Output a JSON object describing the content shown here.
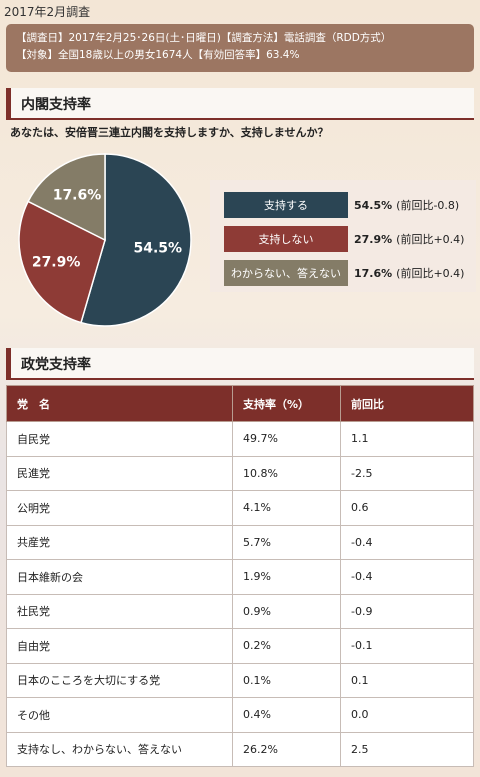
{
  "header": {
    "survey_title": "2017年2月調査",
    "info_line1": "【調査日】2017年2月25･26日(土･日曜日)【調査方法】電話調査（RDD方式）",
    "info_line2": "【対象】全国18歳以上の男女1674人【有効回答率】63.4%"
  },
  "cabinet": {
    "heading": "内閣支持率",
    "question": "あなたは、安倍晋三連立内閣を支持しますか、支持しませんか？"
  },
  "colors": {
    "support": "#2b4554",
    "oppose": "#8e3b36",
    "unknown": "#847c67",
    "accent": "#7d2f2a",
    "info_box": "#9c7662"
  },
  "chart_data": {
    "type": "pie",
    "slices": [
      {
        "label": "支持する",
        "value": 54.5,
        "value_label": "54.5%",
        "diff": "(前回比-0.8)",
        "color": "#2b4554"
      },
      {
        "label": "支持しない",
        "value": 27.9,
        "value_label": "27.9%",
        "diff": "(前回比+0.4)",
        "color": "#8e3b36"
      },
      {
        "label": "わからない、答えない",
        "value": 17.6,
        "value_label": "17.6%",
        "diff": "(前回比+0.4)",
        "color": "#847c67"
      }
    ]
  },
  "party": {
    "heading": "政党支持率",
    "columns": [
      "党　名",
      "支持率（%）",
      "前回比"
    ],
    "rows": [
      {
        "name": "自民党",
        "rate": "49.7%",
        "diff": "1.1"
      },
      {
        "name": "民進党",
        "rate": "10.8%",
        "diff": "-2.5"
      },
      {
        "name": "公明党",
        "rate": "4.1%",
        "diff": "0.6"
      },
      {
        "name": "共産党",
        "rate": "5.7%",
        "diff": "-0.4"
      },
      {
        "name": "日本維新の会",
        "rate": "1.9%",
        "diff": "-0.4"
      },
      {
        "name": "社民党",
        "rate": "0.9%",
        "diff": "-0.9"
      },
      {
        "name": "自由党",
        "rate": "0.2%",
        "diff": "-0.1"
      },
      {
        "name": "日本のこころを大切にする党",
        "rate": "0.1%",
        "diff": "0.1"
      },
      {
        "name": "その他",
        "rate": "0.4%",
        "diff": "0.0"
      },
      {
        "name": "支持なし、わからない、答えない",
        "rate": "26.2%",
        "diff": "2.5"
      }
    ]
  }
}
